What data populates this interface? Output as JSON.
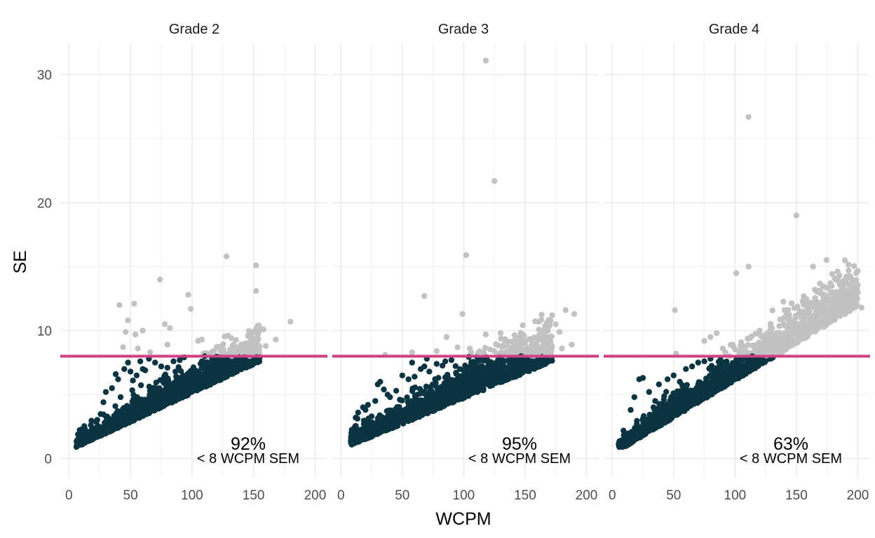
{
  "colors": {
    "below_threshold": "#0b3442",
    "above_threshold": "#c2c2c2",
    "threshold_line": "#d13f85",
    "grid": "#ebebeb",
    "background": "#ffffff"
  },
  "chart_data": {
    "type": "scatter",
    "x_label": "WCPM",
    "y_label": "SE",
    "x_ticks": [
      "0",
      "50",
      "100",
      "150",
      "200"
    ],
    "y_ticks": [
      "0",
      "10",
      "20",
      "30"
    ],
    "xlim": [
      -7,
      210
    ],
    "ylim": [
      -1.5,
      32.5
    ],
    "threshold": 8,
    "grid": true,
    "panels": [
      {
        "title": "Grade 2",
        "pct_label": "92%",
        "sub_label": "< 8 WCPM SEM",
        "trend": {
          "x_min": 6,
          "x_max": 155,
          "slope": 0.045,
          "intercept": 0.8,
          "spread": 0.8
        },
        "cluster_points": [
          [
            40,
            6.2
          ],
          [
            45,
            7.0
          ],
          [
            50,
            6.8
          ],
          [
            55,
            6.5
          ],
          [
            35,
            5.5
          ],
          [
            60,
            7.0
          ],
          [
            48,
            7.5
          ],
          [
            65,
            7.8
          ],
          [
            70,
            7.5
          ],
          [
            30,
            5.2
          ],
          [
            42,
            4.8
          ],
          [
            75,
            7.2
          ],
          [
            85,
            7.6
          ],
          [
            90,
            7.7
          ],
          [
            52,
            6.1
          ],
          [
            58,
            7.6
          ],
          [
            38,
            6.6
          ],
          [
            62,
            6.9
          ],
          [
            80,
            7.1
          ],
          [
            28,
            4.4
          ]
        ],
        "outliers": [
          [
            41,
            12.0
          ],
          [
            53,
            12.1
          ],
          [
            48,
            10.8
          ],
          [
            74,
            14.0
          ],
          [
            97,
            12.8
          ],
          [
            99,
            11.7
          ],
          [
            128,
            15.8
          ],
          [
            152,
            15.1
          ],
          [
            152,
            13.1
          ],
          [
            180,
            10.7
          ],
          [
            78,
            10.5
          ],
          [
            82,
            10.2
          ],
          [
            60,
            10.0
          ],
          [
            46,
            9.9
          ],
          [
            54,
            9.7
          ],
          [
            105,
            9.2
          ],
          [
            108,
            9.3
          ],
          [
            124,
            8.8
          ],
          [
            136,
            8.7
          ],
          [
            140,
            8.9
          ],
          [
            156,
            10.1
          ],
          [
            158,
            10.1
          ],
          [
            148,
            9.5
          ],
          [
            160,
            8.8
          ],
          [
            168,
            9.3
          ],
          [
            145,
            9.0
          ],
          [
            132,
            8.5
          ],
          [
            118,
            8.4
          ],
          [
            56,
            8.6
          ],
          [
            44,
            8.7
          ],
          [
            80,
            8.9
          ],
          [
            66,
            8.3
          ],
          [
            150,
            9.9
          ],
          [
            142,
            8.4
          ],
          [
            126,
            8.1
          ],
          [
            114,
            8.2
          ]
        ]
      },
      {
        "title": "Grade 3",
        "pct_label": "95%",
        "sub_label": "< 8 WCPM SEM",
        "trend": {
          "x_min": 8,
          "x_max": 172,
          "slope": 0.04,
          "intercept": 0.9,
          "spread": 0.9
        },
        "cluster_points": [
          [
            12,
            3.2
          ],
          [
            14,
            3.6
          ],
          [
            18,
            4.0
          ],
          [
            20,
            3.8
          ],
          [
            11,
            2.4
          ],
          [
            22,
            4.2
          ],
          [
            25,
            3.3
          ],
          [
            30,
            5.8
          ],
          [
            32,
            6.0
          ],
          [
            35,
            5.4
          ],
          [
            38,
            5.0
          ],
          [
            40,
            4.8
          ],
          [
            45,
            5.3
          ],
          [
            50,
            6.5
          ],
          [
            55,
            6.2
          ],
          [
            60,
            6.4
          ],
          [
            65,
            7.0
          ],
          [
            68,
            7.2
          ],
          [
            72,
            6.8
          ],
          [
            78,
            7.4
          ],
          [
            58,
            7.5
          ],
          [
            70,
            7.8
          ],
          [
            85,
            7.6
          ],
          [
            90,
            7.7
          ],
          [
            48,
            4.6
          ],
          [
            28,
            4.5
          ]
        ],
        "outliers": [
          [
            118,
            31.1
          ],
          [
            125,
            21.7
          ],
          [
            102,
            15.9
          ],
          [
            68,
            12.7
          ],
          [
            99,
            11.3
          ],
          [
            172,
            11.2
          ],
          [
            183,
            11.6
          ],
          [
            190,
            11.3
          ],
          [
            175,
            10.5
          ],
          [
            178,
            9.9
          ],
          [
            166,
            9.7
          ],
          [
            170,
            10.4
          ],
          [
            118,
            9.7
          ],
          [
            130,
            9.8
          ],
          [
            145,
            9.2
          ],
          [
            150,
            9.1
          ],
          [
            160,
            9.4
          ],
          [
            155,
            8.8
          ],
          [
            140,
            8.5
          ],
          [
            125,
            8.4
          ],
          [
            112,
            8.3
          ],
          [
            86,
            9.5
          ],
          [
            95,
            8.7
          ],
          [
            105,
            8.6
          ],
          [
            78,
            8.4
          ],
          [
            58,
            8.3
          ],
          [
            36,
            8.1
          ],
          [
            165,
            9.0
          ],
          [
            188,
            8.9
          ],
          [
            180,
            8.6
          ],
          [
            148,
            9.7
          ],
          [
            135,
            8.9
          ]
        ]
      },
      {
        "title": "Grade 4",
        "pct_label": "63%",
        "sub_label": "< 8 WCPM SEM",
        "trend": {
          "x_min": 5,
          "x_max": 200,
          "slope": 0.058,
          "intercept": 0.5,
          "spread": 0.9
        },
        "cluster_points": [
          [
            22,
            6.2
          ],
          [
            25,
            6.3
          ],
          [
            18,
            4.8
          ],
          [
            15,
            3.8
          ],
          [
            30,
            5.2
          ],
          [
            38,
            5.8
          ],
          [
            45,
            6.2
          ],
          [
            50,
            6.5
          ],
          [
            55,
            6.0
          ],
          [
            60,
            7.0
          ],
          [
            65,
            7.2
          ],
          [
            70,
            7.5
          ],
          [
            75,
            7.6
          ],
          [
            80,
            7.8
          ],
          [
            58,
            5.5
          ],
          [
            42,
            4.6
          ],
          [
            8,
            1.3
          ],
          [
            10,
            1.0
          ],
          [
            35,
            4.5
          ],
          [
            48,
            4.8
          ]
        ],
        "outliers": [
          [
            111,
            26.7
          ],
          [
            150,
            19.0
          ],
          [
            111,
            15.0
          ],
          [
            101,
            14.5
          ],
          [
            51,
            11.6
          ],
          [
            190,
            14.0
          ],
          [
            195,
            14.0
          ],
          [
            200,
            13.0
          ],
          [
            203,
            11.8
          ],
          [
            178,
            13.0
          ],
          [
            165,
            13.2
          ],
          [
            155,
            12.3
          ],
          [
            170,
            11.8
          ],
          [
            185,
            12.5
          ],
          [
            176,
            10.6
          ],
          [
            168,
            10.2
          ],
          [
            160,
            11.3
          ],
          [
            140,
            11.0
          ],
          [
            130,
            10.2
          ],
          [
            120,
            10.0
          ],
          [
            112,
            9.4
          ],
          [
            105,
            9.1
          ],
          [
            98,
            8.9
          ],
          [
            90,
            8.6
          ],
          [
            85,
            9.8
          ],
          [
            80,
            9.5
          ],
          [
            75,
            9.2
          ],
          [
            92,
            8.3
          ],
          [
            52,
            8.2
          ],
          [
            188,
            12.8
          ],
          [
            182,
            11.4
          ],
          [
            172,
            12.6
          ]
        ]
      }
    ]
  }
}
